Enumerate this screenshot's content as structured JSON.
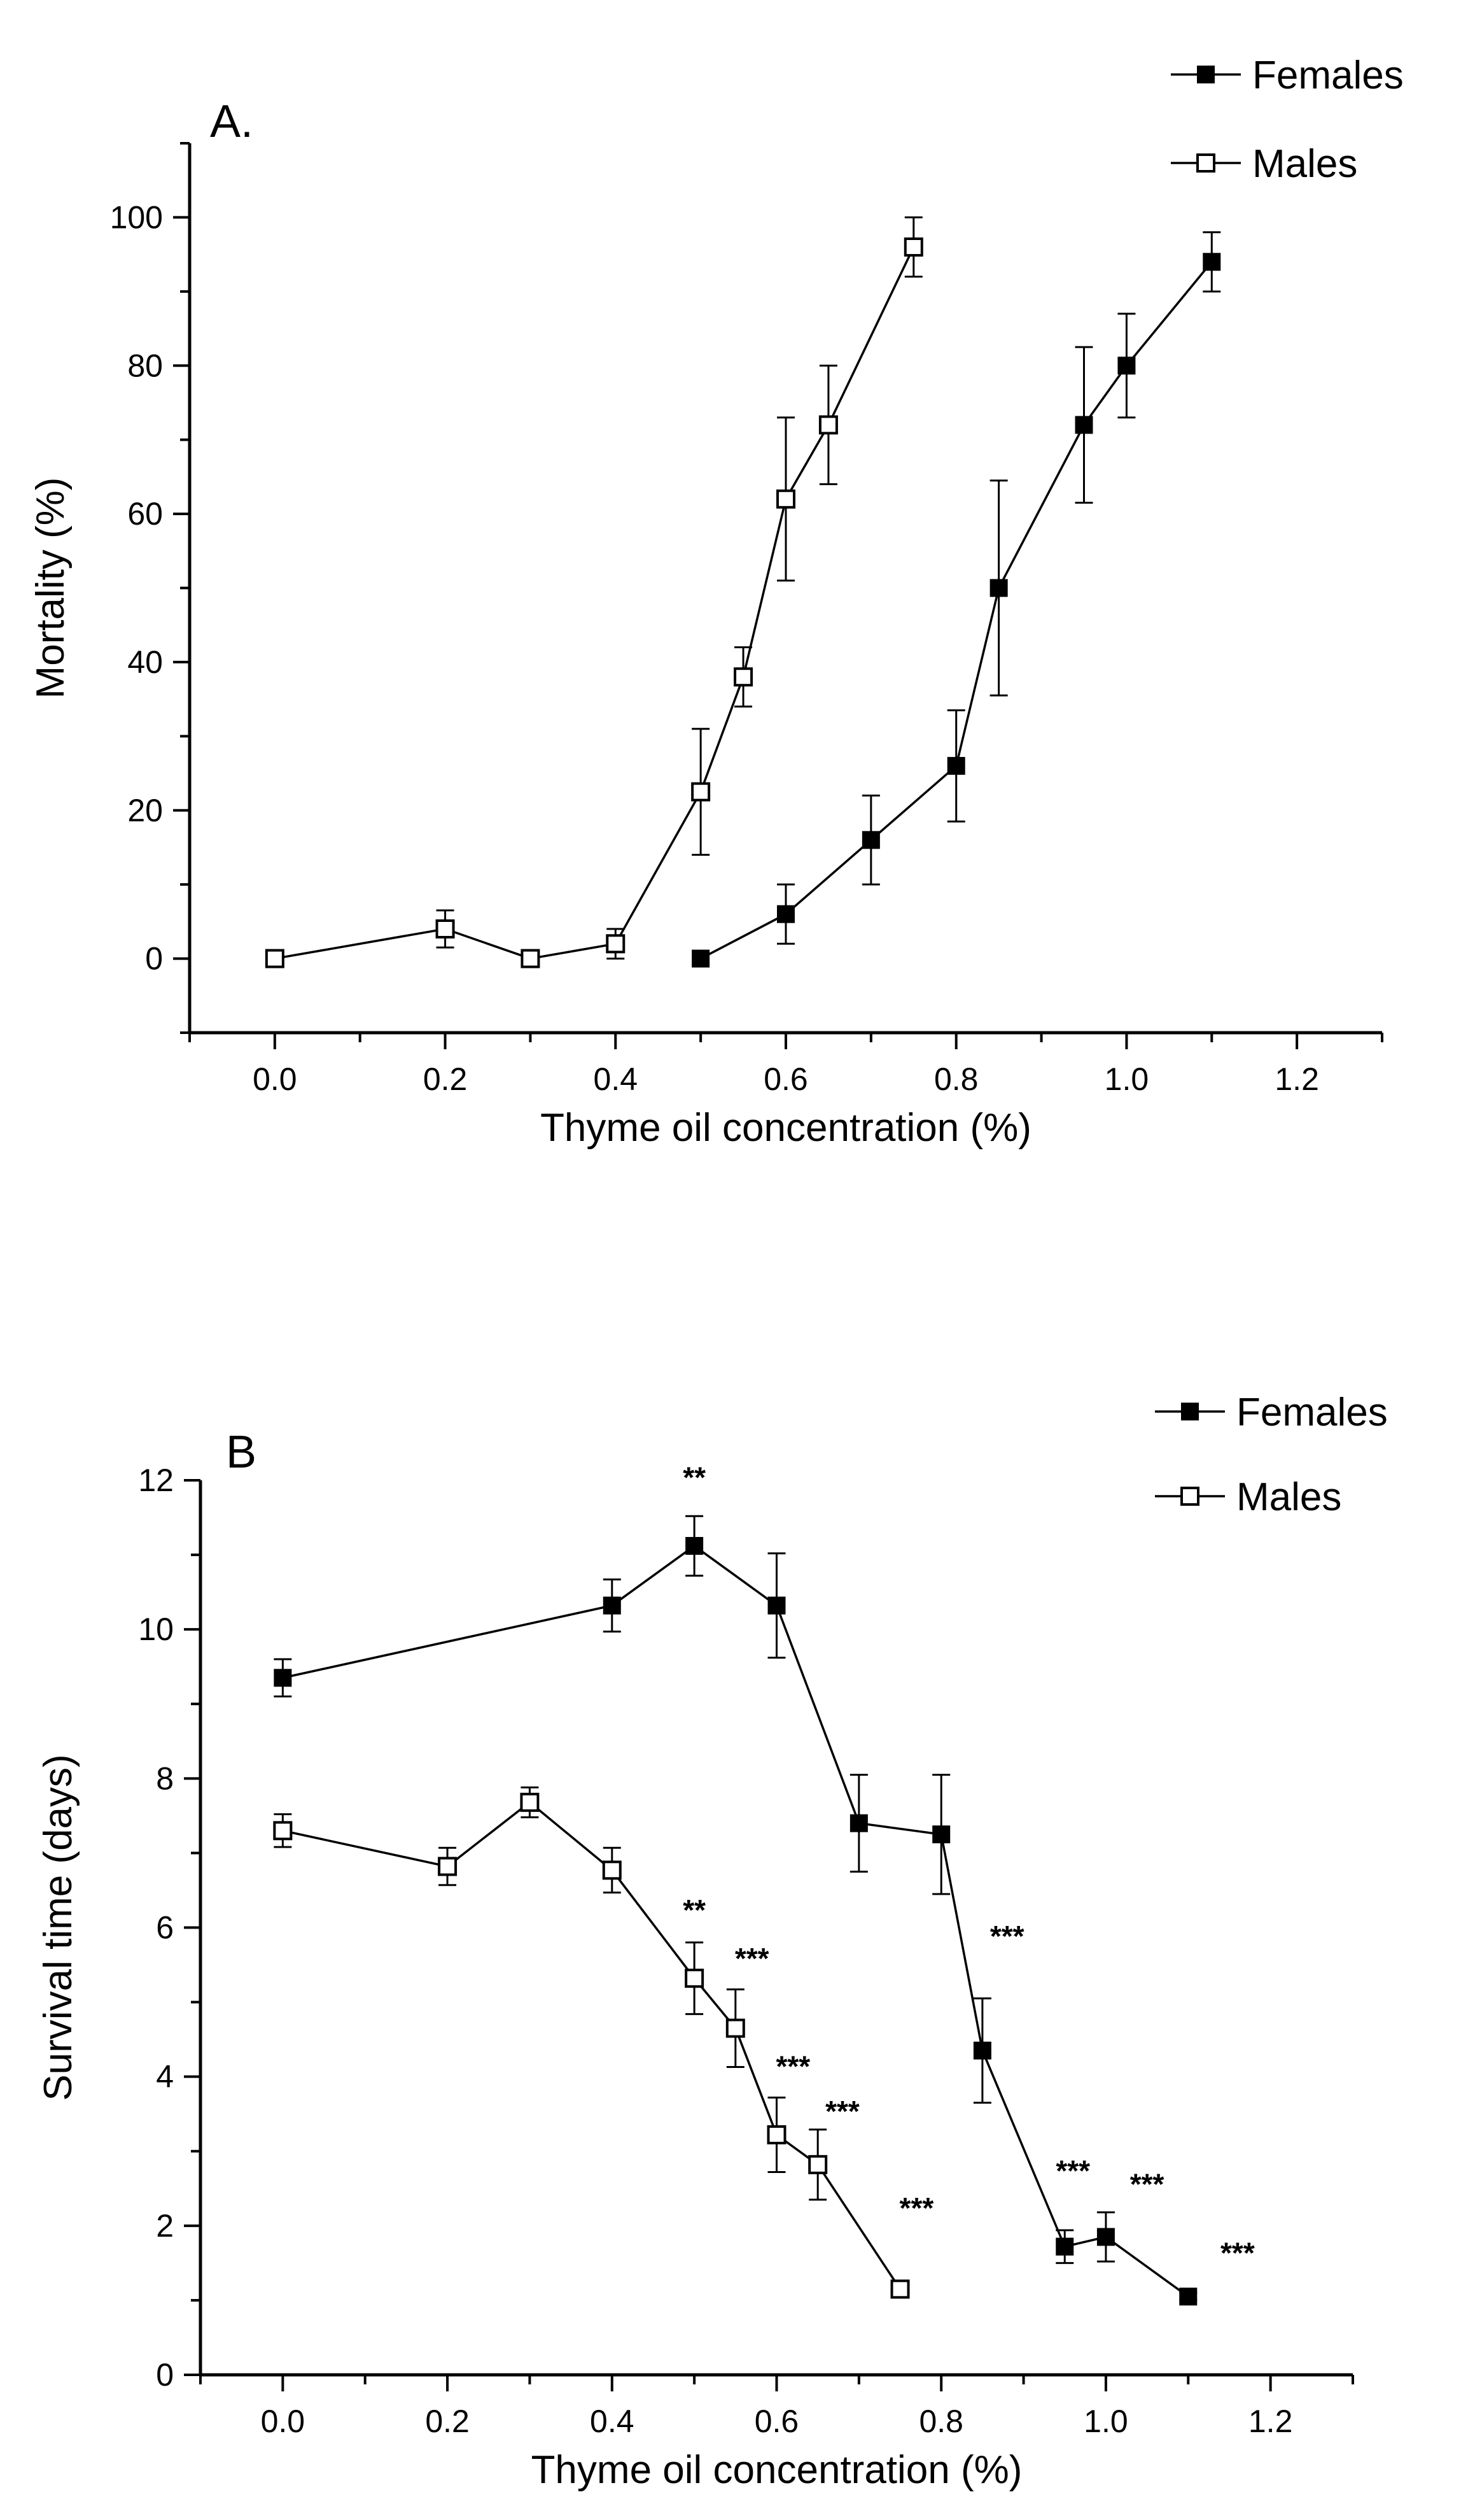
{
  "chart_data": [
    {
      "type": "line",
      "panel_label": "A.",
      "xlabel": "Thyme oil concentration (%)",
      "ylabel": "Mortality (%)",
      "xlim": [
        -0.1,
        1.3
      ],
      "ylim": [
        -10,
        110
      ],
      "xticks": [
        0.0,
        0.2,
        0.4,
        0.6,
        0.8,
        1.0,
        1.2
      ],
      "xtick_labels": [
        "0.0",
        "0.2",
        "0.4",
        "0.6",
        "0.8",
        "1.0",
        "1.2"
      ],
      "yticks": [
        0,
        20,
        40,
        60,
        80,
        100
      ],
      "ytick_labels": [
        "0",
        "20",
        "40",
        "60",
        "80",
        "100"
      ],
      "legend_position": "top-right",
      "series": [
        {
          "name": "Females",
          "marker": "filled-square",
          "x": [
            0.5,
            0.6,
            0.7,
            0.8,
            0.85,
            0.95,
            1.0,
            1.1
          ],
          "y": [
            0,
            6,
            16,
            26,
            50,
            72,
            80,
            94
          ],
          "err": [
            0,
            4,
            6,
            7.5,
            14.5,
            10.5,
            7,
            4
          ]
        },
        {
          "name": "Males",
          "marker": "open-square",
          "x": [
            0.0,
            0.2,
            0.3,
            0.4,
            0.5,
            0.55,
            0.6,
            0.65,
            0.75
          ],
          "y": [
            0,
            4,
            0,
            2,
            22.5,
            38,
            62,
            72,
            96
          ],
          "err": [
            0,
            2.5,
            0,
            2,
            8.5,
            4,
            11,
            8,
            4
          ]
        }
      ],
      "annotations": []
    },
    {
      "type": "line",
      "panel_label": "B",
      "xlabel": "Thyme oil concentration (%)",
      "ylabel": "Survival time (days)",
      "xlim": [
        -0.1,
        1.3
      ],
      "ylim": [
        0,
        12
      ],
      "xticks": [
        0.0,
        0.2,
        0.4,
        0.6,
        0.8,
        1.0,
        1.2
      ],
      "xtick_labels": [
        "0.0",
        "0.2",
        "0.4",
        "0.6",
        "0.8",
        "1.0",
        "1.2"
      ],
      "yticks": [
        0,
        2,
        4,
        6,
        8,
        10,
        12
      ],
      "ytick_labels": [
        "0",
        "2",
        "4",
        "6",
        "8",
        "10",
        "12"
      ],
      "legend_position": "top-right",
      "series": [
        {
          "name": "Females",
          "marker": "filled-square",
          "x": [
            0.0,
            0.4,
            0.5,
            0.6,
            0.7,
            0.8,
            0.85,
            0.95,
            1.0,
            1.1
          ],
          "y": [
            9.35,
            10.32,
            11.12,
            10.32,
            7.4,
            7.25,
            4.35,
            1.72,
            1.85,
            1.05
          ],
          "err": [
            0.25,
            0.35,
            0.4,
            0.7,
            0.65,
            0.8,
            0.7,
            0.22,
            0.33,
            0.05
          ]
        },
        {
          "name": "Males",
          "marker": "open-square",
          "x": [
            0.0,
            0.2,
            0.3,
            0.4,
            0.5,
            0.55,
            0.6,
            0.65,
            0.75
          ],
          "y": [
            7.3,
            6.82,
            7.68,
            6.77,
            5.32,
            4.65,
            3.22,
            2.82,
            1.15
          ],
          "err": [
            0.22,
            0.25,
            0.2,
            0.3,
            0.48,
            0.52,
            0.5,
            0.47,
            0.1
          ]
        }
      ],
      "annotations": [
        {
          "text": "**",
          "x": 0.5,
          "y": 11.9
        },
        {
          "text": "**",
          "x": 0.5,
          "y": 6.1
        },
        {
          "text": "***",
          "x": 0.57,
          "y": 5.45
        },
        {
          "text": "***",
          "x": 0.62,
          "y": 4.0
        },
        {
          "text": "***",
          "x": 0.68,
          "y": 3.4
        },
        {
          "text": "***",
          "x": 0.77,
          "y": 2.1
        },
        {
          "text": "***",
          "x": 0.88,
          "y": 5.75
        },
        {
          "text": "***",
          "x": 0.96,
          "y": 2.6
        },
        {
          "text": "***",
          "x": 1.05,
          "y": 2.42
        },
        {
          "text": "***",
          "x": 1.16,
          "y": 1.5
        }
      ]
    }
  ]
}
